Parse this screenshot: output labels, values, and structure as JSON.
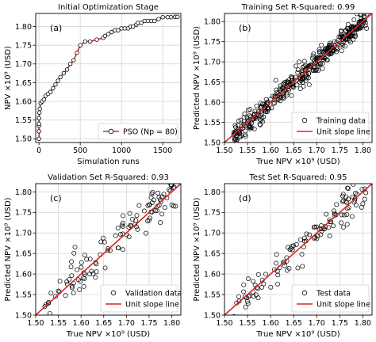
{
  "chart_data": [
    {
      "id": "a",
      "type": "line",
      "title": "Initial Optimization Stage",
      "panel_label": "(a)",
      "xlabel": "Simulation runs",
      "ylabel": "NPV ×10⁹ (USD)",
      "xlim": [
        -40,
        1720
      ],
      "ylim": [
        1.49,
        1.835
      ],
      "xticks": [
        "0",
        "500",
        "1000",
        "1500"
      ],
      "yticks": [
        "1.50",
        "1.55",
        "1.60",
        "1.65",
        "1.70",
        "1.75",
        "1.80"
      ],
      "grid": true,
      "legend": {
        "placement": "bottom-right"
      },
      "series": [
        {
          "name": "PSO (Np = 80)",
          "color": "#d62728",
          "marker": "open-circle",
          "x": [
            0,
            0,
            0,
            0,
            0,
            5,
            10,
            20,
            40,
            60,
            80,
            110,
            140,
            170,
            200,
            230,
            260,
            300,
            340,
            380,
            420,
            460,
            500,
            560,
            620,
            700,
            780,
            800,
            840,
            880,
            920,
            960,
            1000,
            1040,
            1080,
            1110,
            1140,
            1180,
            1200,
            1240,
            1280,
            1320,
            1360,
            1400,
            1450,
            1500,
            1560,
            1600,
            1650,
            1680
          ],
          "y": [
            1.5,
            1.52,
            1.535,
            1.54,
            1.555,
            1.57,
            1.58,
            1.595,
            1.6,
            1.605,
            1.615,
            1.62,
            1.625,
            1.635,
            1.645,
            1.655,
            1.665,
            1.675,
            1.685,
            1.7,
            1.71,
            1.73,
            1.75,
            1.76,
            1.76,
            1.765,
            1.77,
            1.775,
            1.78,
            1.785,
            1.79,
            1.79,
            1.795,
            1.795,
            1.795,
            1.8,
            1.8,
            1.805,
            1.81,
            1.81,
            1.815,
            1.815,
            1.815,
            1.815,
            1.82,
            1.825,
            1.825,
            1.825,
            1.826,
            1.826
          ]
        }
      ]
    },
    {
      "id": "b",
      "type": "scatter",
      "title": "Training Set R-Squared: 0.99",
      "panel_label": "(b)",
      "xlabel": "True NPV ×10⁹ (USD)",
      "ylabel": "Predicted NPV ×10⁹ (USD)",
      "xlim": [
        1.5,
        1.82
      ],
      "ylim": [
        1.5,
        1.82
      ],
      "xticks": [
        "1.50",
        "1.55",
        "1.60",
        "1.65",
        "1.70",
        "1.75",
        "1.80"
      ],
      "yticks": [
        "1.50",
        "1.55",
        "1.60",
        "1.65",
        "1.70",
        "1.75",
        "1.80"
      ],
      "grid": true,
      "legend": {
        "placement": "bottom-right"
      },
      "series": [
        {
          "name": "Training data",
          "marker": "open-circle",
          "count": 400,
          "spread": 0.013
        },
        {
          "name": "Unit slope line",
          "color": "#d62728",
          "type": "line",
          "x": [
            1.5,
            1.82
          ],
          "y": [
            1.5,
            1.82
          ]
        }
      ]
    },
    {
      "id": "c",
      "type": "scatter",
      "title": "Validation Set R-Squared: 0.93",
      "panel_label": "(c)",
      "xlabel": "True NPV ×10⁹ (USD)",
      "ylabel": "Predicted NPV ×10⁹ (USD)",
      "xlim": [
        1.5,
        1.82
      ],
      "ylim": [
        1.5,
        1.82
      ],
      "xticks": [
        "1.50",
        "1.55",
        "1.60",
        "1.65",
        "1.70",
        "1.75",
        "1.80"
      ],
      "yticks": [
        "1.50",
        "1.55",
        "1.60",
        "1.65",
        "1.70",
        "1.75",
        "1.80"
      ],
      "grid": true,
      "legend": {
        "placement": "bottom-right"
      },
      "series": [
        {
          "name": "Validation data",
          "marker": "open-circle",
          "count": 120,
          "spread": 0.025
        },
        {
          "name": "Unit slope line",
          "color": "#d62728",
          "type": "line",
          "x": [
            1.5,
            1.82
          ],
          "y": [
            1.5,
            1.82
          ]
        }
      ]
    },
    {
      "id": "d",
      "type": "scatter",
      "title": "Test Set R-Squared: 0.95",
      "panel_label": "(d)",
      "xlabel": "True NPV ×10⁹ (USD)",
      "ylabel": "Predicted NPV ×10⁹ (USD)",
      "xlim": [
        1.5,
        1.82
      ],
      "ylim": [
        1.5,
        1.82
      ],
      "xticks": [
        "1.50",
        "1.55",
        "1.60",
        "1.65",
        "1.70",
        "1.75",
        "1.80"
      ],
      "yticks": [
        "1.50",
        "1.55",
        "1.60",
        "1.65",
        "1.70",
        "1.75",
        "1.80"
      ],
      "grid": true,
      "legend": {
        "placement": "bottom-right"
      },
      "series": [
        {
          "name": "Test data",
          "marker": "open-circle",
          "count": 120,
          "spread": 0.022
        },
        {
          "name": "Unit slope line",
          "color": "#d62728",
          "type": "line",
          "x": [
            1.5,
            1.82
          ],
          "y": [
            1.5,
            1.82
          ]
        }
      ]
    }
  ]
}
